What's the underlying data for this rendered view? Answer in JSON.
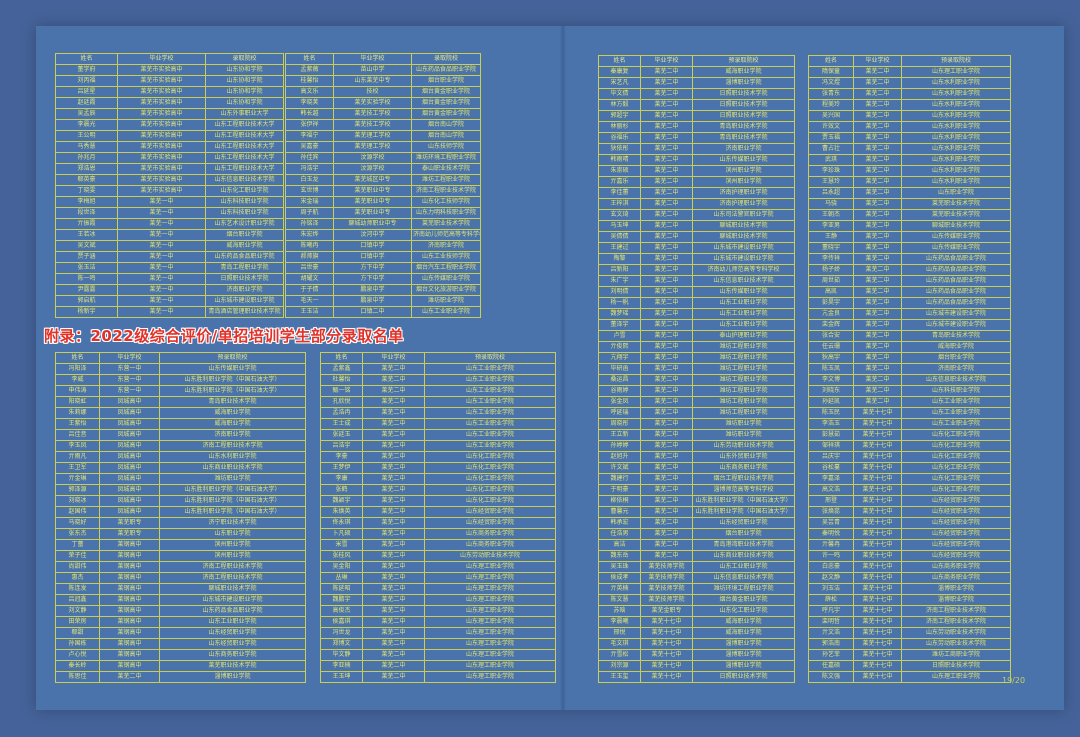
{
  "appendix_heading": "附录：2022级综合评价/单招培训学生部分录取名单",
  "page_number": "19/20",
  "colors": {
    "outer_background": "#45639a",
    "page_background": "#4a73ab",
    "table_border": "#c9cf55",
    "table_text": "#e2e476",
    "heading_red": "#e03228"
  },
  "tables": {
    "top_left": {
      "headers": [
        "姓名",
        "毕业学校",
        "录取院校"
      ],
      "rows": [
        [
          "董学府",
          "莱芜市实验高中",
          "山东协和学院"
        ],
        [
          "刘丙福",
          "莱芜市实验高中",
          "山东协和学院"
        ],
        [
          "吕延星",
          "莱芜市实验高中",
          "山东协和学院"
        ],
        [
          "赵廷霞",
          "莱芜市实验高中",
          "山东协和学院"
        ],
        [
          "吴孟辰",
          "莱芜市实验高中",
          "山东外事职业大学"
        ],
        [
          "李晨光",
          "莱芜市实验高中",
          "山东工程职业技术大学"
        ],
        [
          "王公明",
          "莱芜市实验高中",
          "山东工程职业技术大学"
        ],
        [
          "马秀慧",
          "莱芜市实验高中",
          "山东工程职业技术大学"
        ],
        [
          "孙兆月",
          "莱芜市实验高中",
          "山东工程职业技术大学"
        ],
        [
          "郑浩恩",
          "莱芜市实验高中",
          "山东工程职业技术大学"
        ],
        [
          "郗英豪",
          "莱芜市实验高中",
          "山东信息职业技术学院"
        ],
        [
          "丁晓雯",
          "莱芜市实验高中",
          "山东化工职业学院"
        ],
        [
          "李梅旭",
          "莱芜一中",
          "山东科技职业学院"
        ],
        [
          "段世泽",
          "莱芜一中",
          "山东科技职业学院"
        ],
        [
          "亓振霞",
          "莱芜一中",
          "山东艺术设计职业学院"
        ],
        [
          "王若冰",
          "莱芜一中",
          "烟台职业学院"
        ],
        [
          "吴文斌",
          "莱芜一中",
          "威海职业学院"
        ],
        [
          "贾子涵",
          "莱芜一中",
          "山东药品食品职业学院"
        ],
        [
          "张玉洁",
          "莱芜一中",
          "青岛工程职业学院"
        ],
        [
          "陈一鸣",
          "莱芜一中",
          "日照职业技术学院"
        ],
        [
          "尹露露",
          "莱芜一中",
          "济南职业学院"
        ],
        [
          "郭启航",
          "莱芜一中",
          "山东城市建设职业学院"
        ],
        [
          "杨新宇",
          "莱芜一中",
          "青岛酒店管理职业技术学院"
        ]
      ]
    },
    "top_middle": {
      "headers": [
        "姓名",
        "毕业学校",
        "录取院校"
      ],
      "rows": [
        [
          "孟紫薇",
          "苗山中学",
          "山东药品食品职业学院"
        ],
        [
          "桂馨怡",
          "山东莱芜中专",
          "烟台职业学院"
        ],
        [
          "高文乐",
          "技校",
          "烟台黄金职业学院"
        ],
        [
          "李晓荚",
          "莱芜实验学校",
          "烟台黄金职业学院"
        ],
        [
          "韩长越",
          "莱芜技工学校",
          "烟台黄金职业学院"
        ],
        [
          "张伊祥",
          "莱芜技工学校",
          "烟台南山学院"
        ],
        [
          "李福宁",
          "莱芜理工学校",
          "烟台南山学院"
        ],
        [
          "吴嘉豪",
          "莱芜理工学校",
          "山东技师学院"
        ],
        [
          "孙佳宾",
          "汶源学校",
          "潍坊环境工程职业学院"
        ],
        [
          "冯浩宇",
          "汶源学校",
          "泰山职业技术学院"
        ],
        [
          "白玉龙",
          "莱芜城区中专",
          "潍坊工程职业学院"
        ],
        [
          "玄世博",
          "莱芜职业中专",
          "济南工程职业技术学院"
        ],
        [
          "宋金瑞",
          "莱芜职业中专",
          "山东化工技师学院"
        ],
        [
          "周子航",
          "莱芜职业中专",
          "山东力明科技职业学院"
        ],
        [
          "孙铭泽",
          "聊城幼师职业中专",
          "莱芜职业技术学院"
        ],
        [
          "朱宏烨",
          "汶河中学",
          "济南幼儿师范高等专科学校"
        ],
        [
          "陈曦冉",
          "口镇中学",
          "济南职业学院"
        ],
        [
          "郝帅旗",
          "口镇中学",
          "山东工业技师学院"
        ],
        [
          "吕世豪",
          "方下中学",
          "烟台汽车工程职业学院"
        ],
        [
          "胡耀文",
          "方下中学",
          "山东传媒职业学院"
        ],
        [
          "于子倩",
          "鹏泉中学",
          "烟台文化旅游职业学院"
        ],
        [
          "毛天一",
          "鹏泉中学",
          "潍坊职业学院"
        ],
        [
          "王玉洁",
          "口镇二中",
          "山东工业职业学院"
        ]
      ]
    },
    "bottom_left": {
      "headers": [
        "姓名",
        "毕业学校",
        "预录取院校"
      ],
      "rows": [
        [
          "冯阳泽",
          "东营一中",
          "山东传媒职业学院"
        ],
        [
          "李威",
          "东营一中",
          "山东胜利职业学院（中国石油大学）"
        ],
        [
          "申伟涛",
          "东营一中",
          "山东胜利职业学院（中国石油大学）"
        ],
        [
          "阳晓虹",
          "凤城高中",
          "青岛职业技术学院"
        ],
        [
          "朱莉娜",
          "凤城高中",
          "威海职业学院"
        ],
        [
          "王紫怡",
          "凤城高中",
          "威海职业学院"
        ],
        [
          "吕佳音",
          "凤城高中",
          "济南职业学院"
        ],
        [
          "李玉凤",
          "凤城高中",
          "济南工程职业技术学院"
        ],
        [
          "亓雨凡",
          "凤城高中",
          "山东水利职业学院"
        ],
        [
          "王卫军",
          "凤城高中",
          "山东商业职业技术学院"
        ],
        [
          "亓金琳",
          "凤城高中",
          "潍坊职业学院"
        ],
        [
          "郭泽源",
          "凤城高中",
          "山东胜利职业学院（中国石油大学）"
        ],
        [
          "刘晓冰",
          "凤城高中",
          "山东胜利职业学院（中国石油大学）"
        ],
        [
          "赵国伟",
          "凤城高中",
          "山东胜利职业学院（中国石油大学）"
        ],
        [
          "马晓好",
          "莱芜职专",
          "济宁职业技术学院"
        ],
        [
          "张东杰",
          "莱芜职专",
          "山东职业学院"
        ],
        [
          "丁蕾",
          "莱钢高中",
          "滨州职业学院"
        ],
        [
          "荣子佳",
          "莱钢高中",
          "滨州职业学院"
        ],
        [
          "尚甜伟",
          "莱钢高中",
          "济南工程职业技术学院"
        ],
        [
          "惠杰",
          "莱钢高中",
          "济南工程职业技术学院"
        ],
        [
          "陈连发",
          "莱钢高中",
          "聊城职业技术学院"
        ],
        [
          "吕冠鑫",
          "莱钢高中",
          "山东城市建设职业学院"
        ],
        [
          "刘文静",
          "莱钢高中",
          "山东药品食品职业学院"
        ],
        [
          "田荣房",
          "莱钢高中",
          "山东工业职业学院"
        ],
        [
          "郗甜",
          "莱钢高中",
          "山东经贸职业学院"
        ],
        [
          "孙国栋",
          "莱钢高中",
          "山东经贸职业学院"
        ],
        [
          "卢心悦",
          "莱钢高中",
          "山东商务职业学院"
        ],
        [
          "秦长岭",
          "莱钢高中",
          "莱芜职业技术学院"
        ],
        [
          "陈思佳",
          "莱芜二中",
          "淄博职业学院"
        ]
      ]
    },
    "bottom_right": {
      "headers": [
        "姓名",
        "毕业学校",
        "预录取院校"
      ],
      "rows": [
        [
          "孟紫鑫",
          "莱芜二中",
          "山东工业职业学院"
        ],
        [
          "杜馨怡",
          "莱芜二中",
          "山东工业职业学院"
        ],
        [
          "甄一铭",
          "莱芜二中",
          "山东工业职业学院"
        ],
        [
          "孔欣悦",
          "莱芜二中",
          "山东工业职业学院"
        ],
        [
          "孟浩冉",
          "莱芜二中",
          "山东工业职业学院"
        ],
        [
          "王士成",
          "莱芜二中",
          "山东工业职业学院"
        ],
        [
          "张廷玉",
          "莱芜二中",
          "山东工业职业学院"
        ],
        [
          "吕浩宇",
          "莱芜二中",
          "山东工业职业学院"
        ],
        [
          "李豪",
          "莱芜二中",
          "山东化工职业学院"
        ],
        [
          "王梦伊",
          "莱芜二中",
          "山东化工职业学院"
        ],
        [
          "李康",
          "莱芜二中",
          "山东化工职业学院"
        ],
        [
          "张鹤",
          "莱芜二中",
          "山东化工职业学院"
        ],
        [
          "魏颖宇",
          "莱芜二中",
          "山东化工职业学院"
        ],
        [
          "朱焕英",
          "莱芜二中",
          "山东经贸职业学院"
        ],
        [
          "佟永琪",
          "莱芜二中",
          "山东经贸职业学院"
        ],
        [
          "卜凡硕",
          "莱芜二中",
          "山东商务职业学院"
        ],
        [
          "米雪",
          "莱芜二中",
          "山东商务职业学院"
        ],
        [
          "张桂风",
          "莱芜二中",
          "山东劳动职业技术学院"
        ],
        [
          "吴金阳",
          "莱芜二中",
          "山东理工职业学院"
        ],
        [
          "丛琳",
          "莱芜二中",
          "山东理工职业学院"
        ],
        [
          "陈延昭",
          "莱芜二中",
          "山东理工职业学院"
        ],
        [
          "魏鹏宇",
          "莱芜二中",
          "山东理工职业学院"
        ],
        [
          "高俊杰",
          "莱芜二中",
          "山东理工职业学院"
        ],
        [
          "侯嘉琪",
          "莱芜二中",
          "山东理工职业学院"
        ],
        [
          "冯世龙",
          "莱芜二中",
          "山东理工职业学院"
        ],
        [
          "郑博文",
          "莱芜二中",
          "山东理工职业学院"
        ],
        [
          "毕文静",
          "莱芜二中",
          "山东理工职业学院"
        ],
        [
          "李亚楠",
          "莱芜二中",
          "山东理工职业学院"
        ],
        [
          "王玉坤",
          "莱芜二中",
          "山东理工职业学院"
        ]
      ]
    },
    "right_page_left": {
      "headers": [
        "姓名",
        "毕业学校",
        "预录取院校"
      ],
      "rows": [
        [
          "秦康复",
          "莱芜二中",
          "威海职业学院"
        ],
        [
          "宋艺凡",
          "莱芜二中",
          "淄博职业学院"
        ],
        [
          "毕文倩",
          "莱芜二中",
          "日照职业技术学院"
        ],
        [
          "林方毅",
          "莱芜二中",
          "日照职业技术学院"
        ],
        [
          "郭超宇",
          "莱芜二中",
          "日照职业技术学院"
        ],
        [
          "林丽杉",
          "莱芜二中",
          "青岛职业技术学院"
        ],
        [
          "谷福乐",
          "莱芜二中",
          "青岛职业技术学院"
        ],
        [
          "狄依彤",
          "莱芜二中",
          "济南职业学院"
        ],
        [
          "韩雨晴",
          "莱芜二中",
          "山东传媒职业学院"
        ],
        [
          "朱崇硕",
          "莱芜二中",
          "滨州职业学院"
        ],
        [
          "亓嘉乐",
          "莱芜二中",
          "滨州职业学院"
        ],
        [
          "李佳蕙",
          "莱芜二中",
          "济南护理职业学院"
        ],
        [
          "王梓淇",
          "莱芜二中",
          "济南护理职业学院"
        ],
        [
          "玄文琦",
          "莱芜二中",
          "山东司法警官职业学院"
        ],
        [
          "马玉坤",
          "莱芜二中",
          "聊城职业技术学院"
        ],
        [
          "吴倩倩",
          "莱芜二中",
          "聊城职业技术学院"
        ],
        [
          "王建过",
          "莱芜二中",
          "山东城市建设职业学院"
        ],
        [
          "陶黎",
          "莱芜二中",
          "山东城市建设职业学院"
        ],
        [
          "吕新阳",
          "莱芜二中",
          "济南幼儿师范高等专科学校"
        ],
        [
          "朱广宇",
          "莱芜二中",
          "山东信息职业技术学院"
        ],
        [
          "刘明倩",
          "莱芜二中",
          "山东传媒职业学院"
        ],
        [
          "杨一帆",
          "莱芜二中",
          "山东工业职业学院"
        ],
        [
          "魏梦瑶",
          "莱芜二中",
          "山东工业职业学院"
        ],
        [
          "董泽宇",
          "莱芜二中",
          "山东工业职业学院"
        ],
        [
          "卢雪",
          "莱芜二中",
          "泰山护理职业学院"
        ],
        [
          "亓俊熙",
          "莱芜二中",
          "潍坊工程职业学院"
        ],
        [
          "亢翔宇",
          "莱芜二中",
          "潍坊工程职业学院"
        ],
        [
          "毕研函",
          "莱芜二中",
          "潍坊工程职业学院"
        ],
        [
          "桑运昌",
          "莱芜二中",
          "潍坊工程职业学院"
        ],
        [
          "谷雨婷",
          "莱芜二中",
          "潍坊工程职业学院"
        ],
        [
          "张金凤",
          "莱芜二中",
          "潍坊工程职业学院"
        ],
        [
          "呼延瑞",
          "莱芜二中",
          "潍坊工程职业学院"
        ],
        [
          "周晓彤",
          "莱芜二中",
          "潍坊职业学院"
        ],
        [
          "王立新",
          "莱芜二中",
          "潍坊职业学院"
        ],
        [
          "孙婷婷",
          "莱芜二中",
          "山东劳动职业技术学院"
        ],
        [
          "赵旭升",
          "莱芜二中",
          "山东外贸职业学院"
        ],
        [
          "许文斌",
          "莱芜二中",
          "山东商务职业学院"
        ],
        [
          "魏建行",
          "莱芜二中",
          "烟台工程职业技术学院"
        ],
        [
          "于明豪",
          "莱芜二中",
          "淄博师范高等专科学校"
        ],
        [
          "柳依桐",
          "莱芜二中",
          "山东胜利职业学院（中国石油大学）"
        ],
        [
          "曹馨元",
          "莱芜二中",
          "山东胜利职业学院（中国石油大学）"
        ],
        [
          "韩承宏",
          "莱芜二中",
          "山东经贸职业学院"
        ],
        [
          "任浩男",
          "莱芜二中",
          "烟台职业学院"
        ],
        [
          "高洁",
          "莱芜二中",
          "青岛港湾职业技术学院"
        ],
        [
          "魏东岳",
          "莱芜二中",
          "山东商业职业技术学院"
        ],
        [
          "吴玉珠",
          "莱芜技师学院",
          "山东工业职业学院"
        ],
        [
          "侯成孝",
          "莱芜技师学院",
          "山东信息职业技术学院"
        ],
        [
          "亓英楠",
          "莱芜技师学院",
          "潍坊环境工程职业学院"
        ],
        [
          "陈文慧",
          "莱芜技师学院",
          "烟台黄金职业学院"
        ],
        [
          "苏晗",
          "莱芜金职专",
          "山东化工职业学院"
        ],
        [
          "李晨曦",
          "莱芜十七中",
          "威海职业学院"
        ],
        [
          "邢悦",
          "莱芜十七中",
          "威海职业学院"
        ],
        [
          "毛文琪",
          "莱芜十七中",
          "淄博职业学院"
        ],
        [
          "亓雪松",
          "莱芜十七中",
          "淄博职业学院"
        ],
        [
          "刘宗源",
          "莱芜十七中",
          "淄博职业学院"
        ],
        [
          "王玉玺",
          "莱芜十七中",
          "日照职业技术学院"
        ]
      ]
    },
    "right_page_right": {
      "headers": [
        "姓名",
        "毕业学校",
        "预录取院校"
      ],
      "rows": [
        [
          "隋保童",
          "莱芜二中",
          "山东理工职业学院"
        ],
        [
          "冯文煜",
          "莱芜二中",
          "山东水利职业学院"
        ],
        [
          "张青东",
          "莱芜二中",
          "山东水利职业学院"
        ],
        [
          "程美玲",
          "莱芜二中",
          "山东水利职业学院"
        ],
        [
          "吴兴国",
          "莱芜二中",
          "山东水利职业学院"
        ],
        [
          "许效文",
          "莱芜二中",
          "山东水利职业学院"
        ],
        [
          "贾玉福",
          "莱芜二中",
          "山东水利职业学院"
        ],
        [
          "曹占壮",
          "莱芜二中",
          "山东水利职业学院"
        ],
        [
          "武琪",
          "莱芜二中",
          "山东水利职业学院"
        ],
        [
          "李珍珠",
          "莱芜二中",
          "山东水利职业学院"
        ],
        [
          "王慧玲",
          "莱芜二中",
          "山东水利职业学院"
        ],
        [
          "吕永超",
          "莱芜二中",
          "山东职业学院"
        ],
        [
          "马骁",
          "莱芜二中",
          "莱芜职业技术学院"
        ],
        [
          "王朝杰",
          "莱芜二中",
          "莱芜职业技术学院"
        ],
        [
          "李亚男",
          "莱芜二中",
          "聊城职业技术学院"
        ],
        [
          "王静",
          "莱芜二中",
          "山东传媒职业学院"
        ],
        [
          "董晓宇",
          "莱芜二中",
          "山东传媒职业学院"
        ],
        [
          "李传祥",
          "莱芜二中",
          "山东药品食品职业学院"
        ],
        [
          "杨子娇",
          "莱芜二中",
          "山东药品食品职业学院"
        ],
        [
          "周世茹",
          "莱芜二中",
          "山东药品食品职业学院"
        ],
        [
          "高凯",
          "莱芜二中",
          "山东药品食品职业学院"
        ],
        [
          "彭昊宇",
          "莱芜二中",
          "山东药品食品职业学院"
        ],
        [
          "亢金良",
          "莱芜二中",
          "山东城市建设职业学院"
        ],
        [
          "栾金辉",
          "莱芜二中",
          "山东城市建设职业学院"
        ],
        [
          "张合安",
          "莱芜二中",
          "青岛职业技术学院"
        ],
        [
          "任云珊",
          "莱芜二中",
          "威海职业学院"
        ],
        [
          "狄高宇",
          "莱芜二中",
          "烟台职业学院"
        ],
        [
          "陈玉凤",
          "莱芜二中",
          "济南职业学院"
        ],
        [
          "李文博",
          "莱芜二中",
          "山东信息职业技术学院"
        ],
        [
          "刘晓东",
          "莱芜二中",
          "山东科技职业学院"
        ],
        [
          "孙延凯",
          "莱芜二中",
          "山东工业职业学院"
        ],
        [
          "陈玉民",
          "莱芜十七中",
          "山东工业职业学院"
        ],
        [
          "李浩玉",
          "莱芜十七中",
          "山东工业职业学院"
        ],
        [
          "彭慧茹",
          "莱芜十七中",
          "山东化工职业学院"
        ],
        [
          "邹祥琪",
          "莱芜十七中",
          "山东化工职业学院"
        ],
        [
          "吕庆宇",
          "莱芜十七中",
          "山东化工职业学院"
        ],
        [
          "谷松蔓",
          "莱芜十七中",
          "山东化工职业学院"
        ],
        [
          "李嘉泽",
          "莱芜十七中",
          "山东化工职业学院"
        ],
        [
          "高文浩",
          "莱芜十七中",
          "山东化工职业学院"
        ],
        [
          "邢登",
          "莱芜十七中",
          "山东经贸职业学院"
        ],
        [
          "张焕蕊",
          "莱芜十七中",
          "山东经贸职业学院"
        ],
        [
          "吴芸青",
          "莱芜十七中",
          "山东经贸职业学院"
        ],
        [
          "秦明悦",
          "莱芜十七中",
          "山东经贸职业学院"
        ],
        [
          "亓馨冉",
          "莱芜十七中",
          "山东经贸职业学院"
        ],
        [
          "许一鸣",
          "莱芜十七中",
          "山东经贸职业学院"
        ],
        [
          "白忠豪",
          "莱芜十七中",
          "山东商务职业学院"
        ],
        [
          "赵文静",
          "莱芜十七中",
          "山东商务职业学院"
        ],
        [
          "刘玉洁",
          "莱芜十七中",
          "淄博职业学院"
        ],
        [
          "薛松",
          "莱芜十七中",
          "淄博职业学院"
        ],
        [
          "呼凡宇",
          "莱芜十七中",
          "济南工程职业技术学院"
        ],
        [
          "栾明哲",
          "莱芜十七中",
          "济南工程职业技术学院"
        ],
        [
          "亓文浩",
          "莱芜十七中",
          "山东劳动职业技术学院"
        ],
        [
          "郭浩南",
          "莱芜十七中",
          "山东劳动职业技术学院"
        ],
        [
          "孙艺菲",
          "莱芜十七中",
          "潍坊工商职业学院"
        ],
        [
          "任嘉硕",
          "莱芜十七中",
          "日照职业技术学院"
        ],
        [
          "陈文强",
          "莱芜十七中",
          "山东理工职业学院"
        ]
      ]
    }
  }
}
